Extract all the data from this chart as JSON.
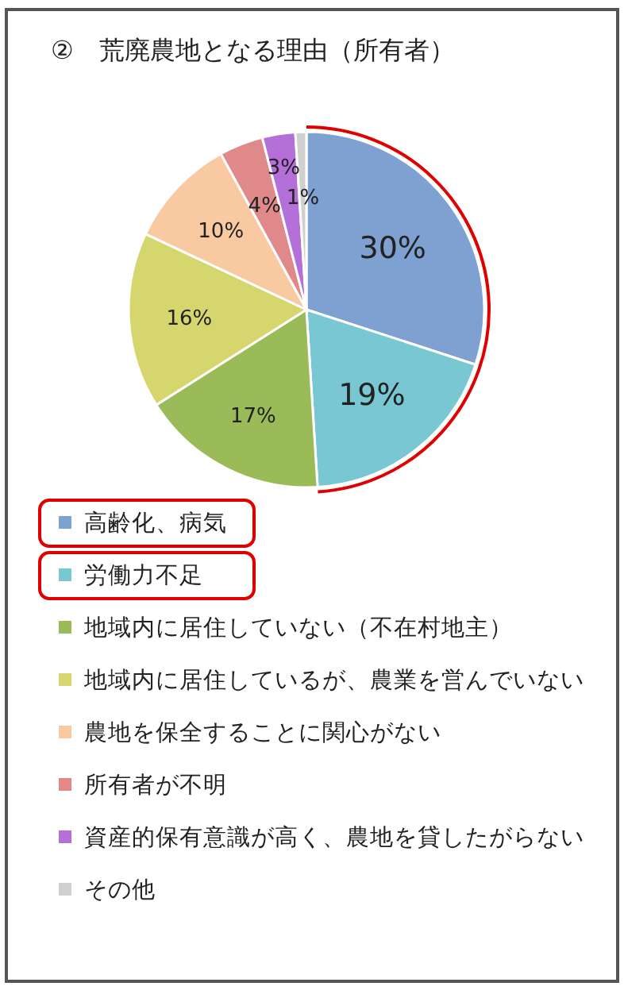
{
  "chart_data": {
    "type": "pie",
    "title": "②　荒廃農地となる理由（所有者）",
    "categories": [
      "高齢化、病気",
      "労働力不足",
      "地域内に居住していない（不在村地主）",
      "地域内に居住しているが、農業を営んでいない",
      "農地を保全することに関心がない",
      "所有者が不明",
      "資産的保有意識が高く、農地を貸したがらない",
      "その他"
    ],
    "values": [
      30,
      19,
      17,
      16,
      10,
      4,
      3,
      1
    ],
    "colors": [
      "#7ea1d1",
      "#78c7d2",
      "#9bbb59",
      "#d6d66f",
      "#f9c9a1",
      "#e0898b",
      "#b46fd8",
      "#d0d0d0"
    ],
    "value_labels": [
      "30%",
      "19%",
      "17%",
      "16%",
      "10%",
      "4%",
      "3%",
      "1%"
    ],
    "legend": "bottom"
  }
}
